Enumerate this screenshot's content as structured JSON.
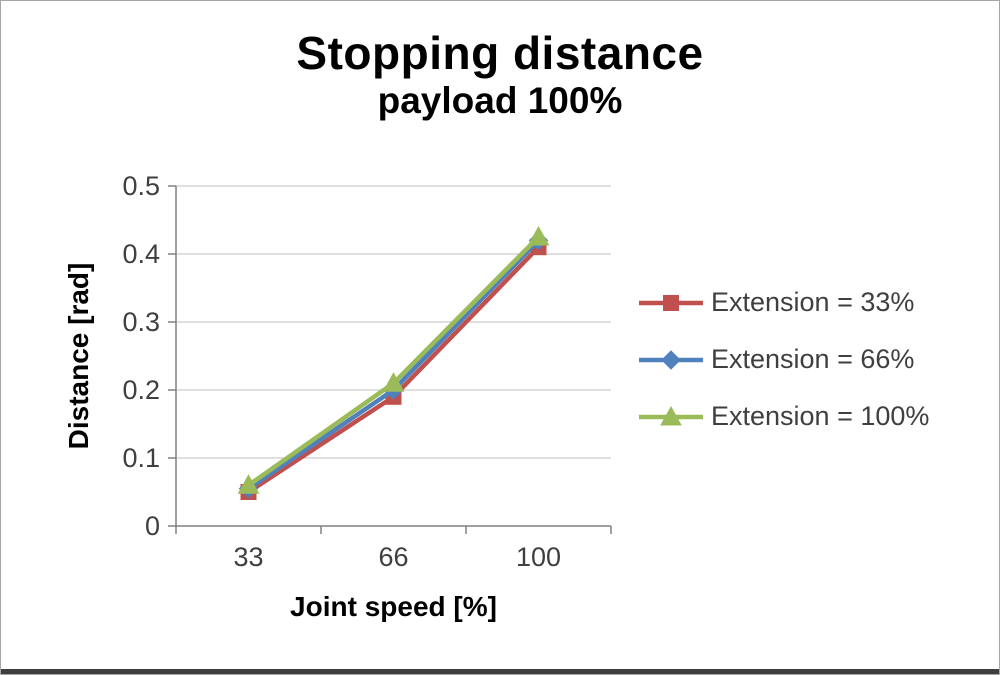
{
  "chart_data": {
    "type": "line",
    "title": "Stopping distance",
    "subtitle": "payload 100%",
    "xlabel": "Joint speed [%]",
    "ylabel": "Distance [rad]",
    "categories": [
      "33",
      "66",
      "100"
    ],
    "ylim": [
      0,
      0.5
    ],
    "ytick_step": 0.1,
    "grid": true,
    "legend_position": "right",
    "colors": {
      "gridline": "#bfbfbf",
      "axis": "#808080",
      "tick_label": "#3f3f3f",
      "axis_title": "#000000"
    },
    "series": [
      {
        "name": "Extension = 33%",
        "marker": "square",
        "color": "#c0504d",
        "values": [
          0.05,
          0.19,
          0.41
        ]
      },
      {
        "name": "Extension = 66%",
        "marker": "diamond",
        "color": "#4f81bd",
        "values": [
          0.055,
          0.2,
          0.42
        ]
      },
      {
        "name": "Extension = 100%",
        "marker": "triangle",
        "color": "#9bbb59",
        "values": [
          0.06,
          0.21,
          0.425
        ]
      }
    ]
  }
}
